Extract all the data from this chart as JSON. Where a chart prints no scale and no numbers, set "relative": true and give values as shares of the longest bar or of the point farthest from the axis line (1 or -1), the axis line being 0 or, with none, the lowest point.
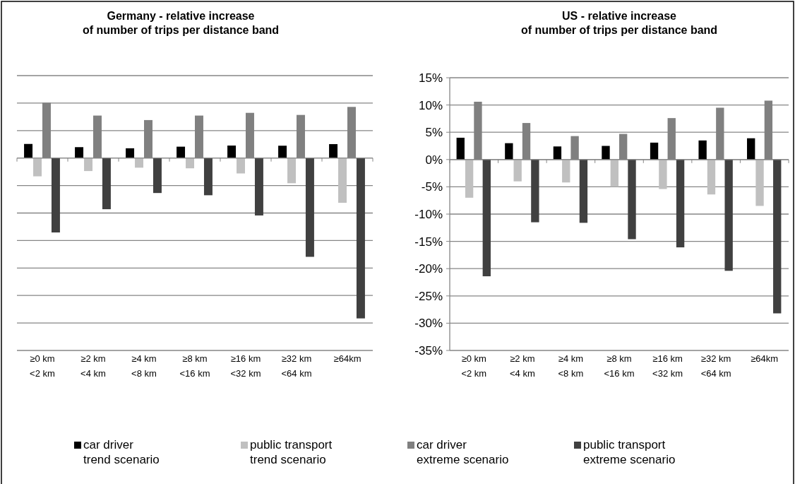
{
  "chart_data": [
    {
      "type": "bar",
      "title": "Germany - relative increase\nof number of trips per distance band",
      "relative": true,
      "grid": true,
      "tick_labels": "x",
      "legend": "bottom",
      "categories": [
        "≥0 km\n<2 km",
        "≥2 km\n<4 km",
        "≥4 km\n<8 km",
        "≥8 km\n<16 km",
        "≥16 km\n<32 km",
        "≥32 km\n<64 km",
        "≥64km"
      ],
      "series": [
        {
          "name": "car driver\ntrend scenario",
          "color": "#000000",
          "values": [
            0.088,
            0.068,
            0.061,
            0.071,
            0.078,
            0.077,
            0.087
          ]
        },
        {
          "name": "public transport\ntrend scenario",
          "color": "#c0c0c0",
          "values": [
            -0.114,
            -0.081,
            -0.06,
            -0.064,
            -0.096,
            -0.157,
            -0.279
          ]
        },
        {
          "name": "car driver\nextreme scenario",
          "color": "#808080",
          "values": [
            0.345,
            0.265,
            0.237,
            0.265,
            0.282,
            0.269,
            0.319
          ]
        },
        {
          "name": "public transport\nextreme scenario",
          "color": "#404040",
          "values": [
            -0.464,
            -0.319,
            -0.218,
            -0.232,
            -0.358,
            -0.616,
            -1
          ]
        }
      ]
    },
    {
      "type": "bar",
      "title": "US - relative increase\nof number of trips per distance band",
      "grid": true,
      "legend": false,
      "categories": [
        "≥0 km\n<2 km",
        "≥2 km\n<4 km",
        "≥4 km\n<8 km",
        "≥8 km\n<16 km",
        "≥16 km\n<32 km",
        "≥32 km\n<64 km",
        "≥64km"
      ],
      "ylim": [
        -35,
        15
      ],
      "yticks": [
        {
          "value": 15,
          "label": "15%"
        },
        {
          "value": 10,
          "label": "10%"
        },
        {
          "value": 5,
          "label": "5%"
        },
        {
          "value": 0,
          "label": "0%"
        },
        {
          "value": -5,
          "label": "-5%"
        },
        {
          "value": -10,
          "label": "-10%"
        },
        {
          "value": -15,
          "label": "-15%"
        },
        {
          "value": -20,
          "label": "-20%"
        },
        {
          "value": -25,
          "label": "-25%"
        },
        {
          "value": -30,
          "label": "-30%"
        },
        {
          "value": -35,
          "label": "-35%"
        }
      ],
      "series": [
        {
          "color": "#000000",
          "values": [
            4.0,
            3.0,
            2.4,
            2.5,
            3.1,
            3.5,
            3.9
          ]
        },
        {
          "color": "#c0c0c0",
          "values": [
            -7.0,
            -4.0,
            -4.2,
            -5.0,
            -5.4,
            -6.4,
            -8.5
          ]
        },
        {
          "color": "#808080",
          "values": [
            10.6,
            6.7,
            4.3,
            4.7,
            7.6,
            9.5,
            10.8
          ]
        },
        {
          "color": "#404040",
          "values": [
            -21.4,
            -11.5,
            -11.6,
            -14.6,
            -16.1,
            -20.4,
            -28.2
          ]
        }
      ]
    }
  ]
}
